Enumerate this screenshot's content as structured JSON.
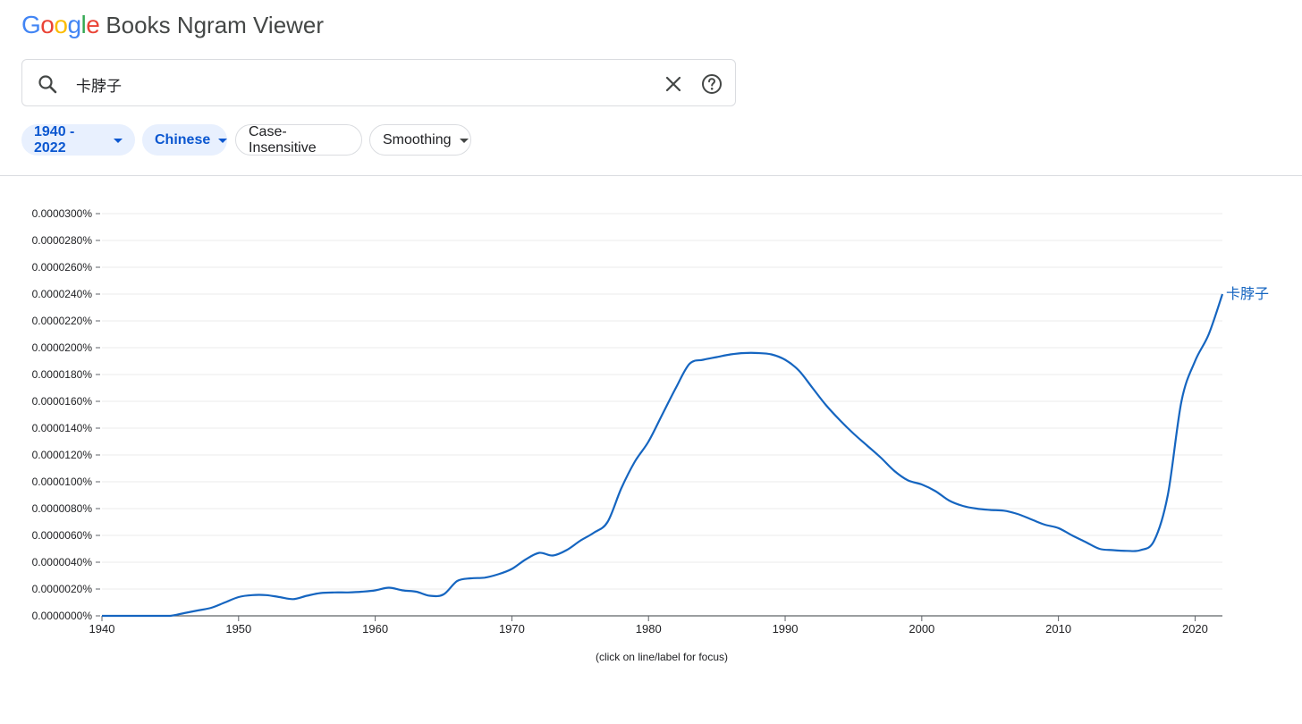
{
  "header": {
    "logo_letters": [
      {
        "char": "G",
        "color": "#4285F4"
      },
      {
        "char": "o",
        "color": "#EA4335"
      },
      {
        "char": "o",
        "color": "#FBBC05"
      },
      {
        "char": "g",
        "color": "#4285F4"
      },
      {
        "char": "l",
        "color": "#34A853"
      },
      {
        "char": "e",
        "color": "#EA4335"
      }
    ],
    "product_name": "Books Ngram Viewer"
  },
  "search": {
    "value": "卡脖子",
    "icons": {
      "search": "search-icon",
      "clear": "close-icon",
      "help": "help-icon"
    }
  },
  "filters": {
    "year_range": "1940 - 2022",
    "corpus": "Chinese",
    "case": "Case-Insensitive",
    "smoothing": "Smoothing"
  },
  "colors": {
    "accent": "#0b57d0",
    "series": "#1565c0"
  },
  "chart_data": {
    "type": "line",
    "xlim": [
      1940,
      2022
    ],
    "ylim": [
      0,
      3e-07
    ],
    "y_tick_labels": [
      "0.0000000%",
      "0.0000020%",
      "0.0000040%",
      "0.0000060%",
      "0.0000080%",
      "0.0000100%",
      "0.0000120%",
      "0.0000140%",
      "0.0000160%",
      "0.0000180%",
      "0.0000200%",
      "0.0000220%",
      "0.0000240%",
      "0.0000260%",
      "0.0000280%",
      "0.0000300%"
    ],
    "y_ticks": [
      0,
      2e-08,
      4e-08,
      6e-08,
      8e-08,
      1e-07,
      1.2e-07,
      1.4e-07,
      1.6e-07,
      1.8e-07,
      2e-07,
      2.2e-07,
      2.4e-07,
      2.6e-07,
      2.8e-07,
      3e-07
    ],
    "x_ticks": [
      1940,
      1950,
      1960,
      1970,
      1980,
      1990,
      2000,
      2010,
      2020
    ],
    "x_tick_labels": [
      "1940",
      "1950",
      "1960",
      "1970",
      "1980",
      "1990",
      "2000",
      "2010",
      "2020"
    ],
    "grid": true,
    "series": [
      {
        "name": "卡脖子",
        "color": "#1565c0",
        "x": [
          1940,
          1941,
          1942,
          1943,
          1944,
          1945,
          1946,
          1947,
          1948,
          1949,
          1950,
          1951,
          1952,
          1953,
          1954,
          1955,
          1956,
          1957,
          1958,
          1959,
          1960,
          1961,
          1962,
          1963,
          1964,
          1965,
          1966,
          1967,
          1968,
          1969,
          1970,
          1971,
          1972,
          1973,
          1974,
          1975,
          1976,
          1977,
          1978,
          1979,
          1980,
          1981,
          1982,
          1983,
          1984,
          1985,
          1986,
          1987,
          1988,
          1989,
          1990,
          1991,
          1992,
          1993,
          1994,
          1995,
          1996,
          1997,
          1998,
          1999,
          2000,
          2001,
          2002,
          2003,
          2004,
          2005,
          2006,
          2007,
          2008,
          2009,
          2010,
          2011,
          2012,
          2013,
          2014,
          2015,
          2016,
          2017,
          2018,
          2019,
          2020,
          2021,
          2022
        ],
        "y": [
          0,
          0,
          0,
          0,
          0,
          0,
          2e-09,
          4e-09,
          6e-09,
          1e-08,
          1.4e-08,
          1.55e-08,
          1.55e-08,
          1.4e-08,
          1.25e-08,
          1.5e-08,
          1.7e-08,
          1.75e-08,
          1.75e-08,
          1.8e-08,
          1.9e-08,
          2.1e-08,
          1.9e-08,
          1.8e-08,
          1.5e-08,
          1.6e-08,
          2.6e-08,
          2.8e-08,
          2.85e-08,
          3.1e-08,
          3.5e-08,
          4.2e-08,
          4.7e-08,
          4.5e-08,
          4.9e-08,
          5.6e-08,
          6.2e-08,
          7e-08,
          9.5e-08,
          1.15e-07,
          1.3e-07,
          1.5e-07,
          1.7e-07,
          1.88e-07,
          1.91e-07,
          1.93e-07,
          1.95e-07,
          1.96e-07,
          1.96e-07,
          1.95e-07,
          1.91e-07,
          1.83e-07,
          1.7e-07,
          1.57e-07,
          1.46e-07,
          1.36e-07,
          1.27e-07,
          1.18e-07,
          1.08e-07,
          1.01e-07,
          9.8e-08,
          9.3e-08,
          8.6e-08,
          8.2e-08,
          8e-08,
          7.9e-08,
          7.85e-08,
          7.6e-08,
          7.2e-08,
          6.8e-08,
          6.55e-08,
          6e-08,
          5.5e-08,
          5e-08,
          4.9e-08,
          4.85e-08,
          4.9e-08,
          5.6e-08,
          9e-08,
          1.6e-07,
          1.9e-07,
          2.1e-07,
          2.4e-07
        ]
      }
    ],
    "footnote": "(click on line/label for focus)"
  }
}
